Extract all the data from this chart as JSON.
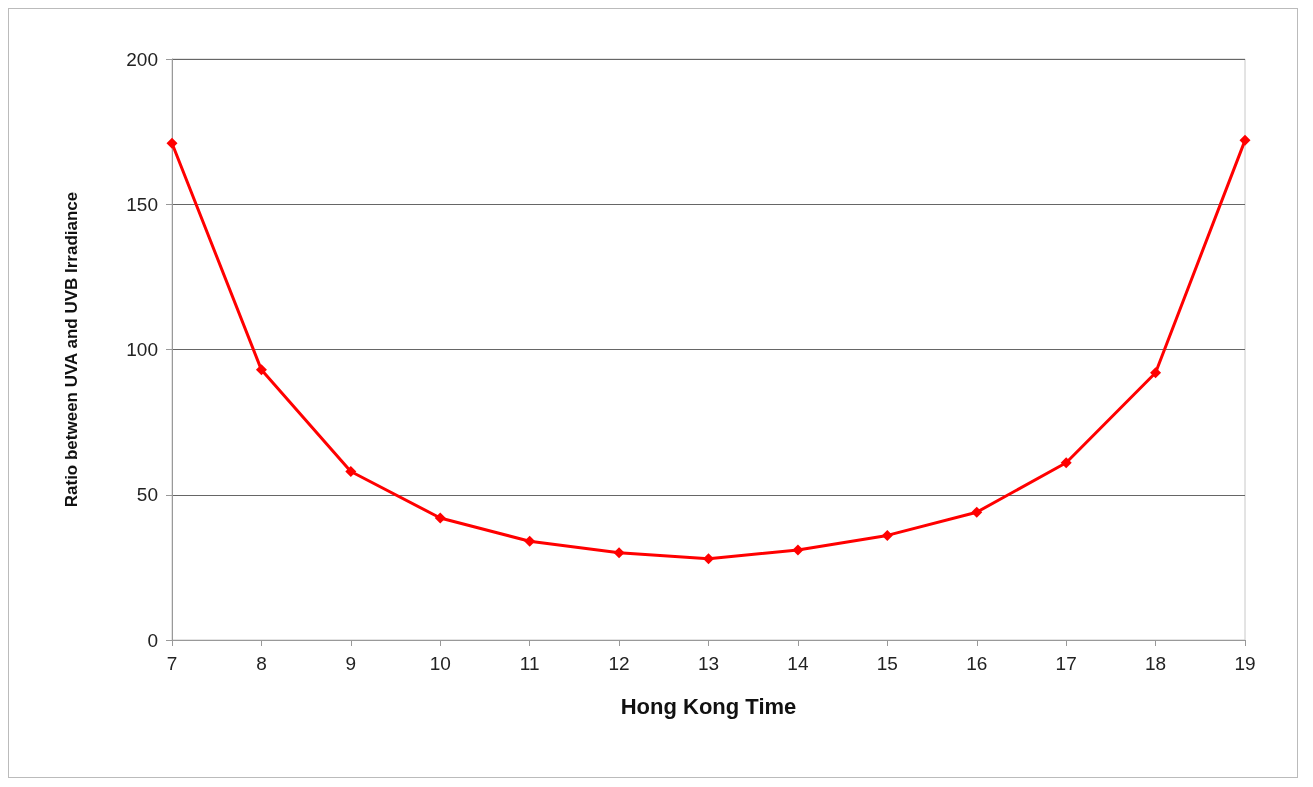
{
  "chart_data": {
    "type": "line",
    "xlabel": "Hong Kong Time",
    "ylabel": "Ratio between UVA and UVB Irradiance",
    "x": [
      7,
      8,
      9,
      10,
      11,
      12,
      13,
      14,
      15,
      16,
      17,
      18,
      19
    ],
    "series": [
      {
        "color": "#ff0000",
        "values": [
          171,
          93,
          58,
          42,
          34,
          30,
          28,
          31,
          36,
          44,
          61,
          92,
          172
        ]
      }
    ],
    "xlim": [
      7,
      19
    ],
    "xticks": [
      7,
      8,
      9,
      10,
      11,
      12,
      13,
      14,
      15,
      16,
      17,
      18,
      19
    ],
    "ylim": [
      0,
      200
    ],
    "yticks": [
      0,
      50,
      100,
      150,
      200
    ],
    "grid": "y",
    "marker": "diamond",
    "line_style": "solid"
  }
}
